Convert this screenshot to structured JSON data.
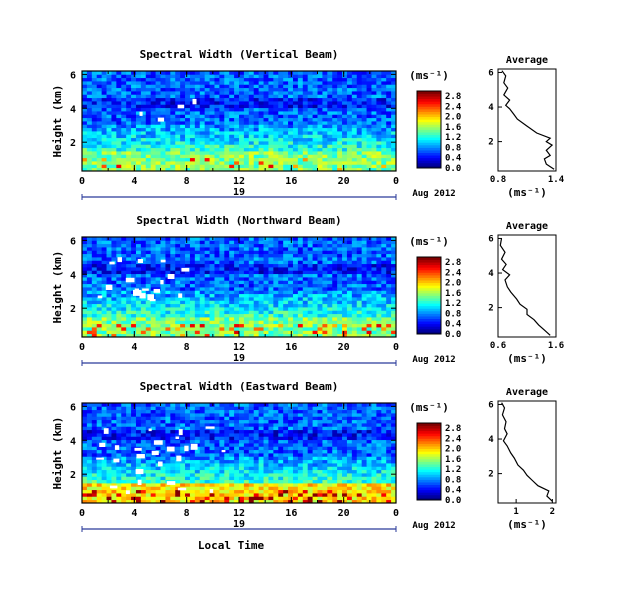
{
  "chart_data": [
    {
      "type": "heatmap",
      "title": "Spectral Width (Vertical Beam)",
      "ylabel": "Height (km)",
      "y_ticks": [
        "2",
        "4",
        "6"
      ],
      "ylim": [
        0.3,
        6.2
      ],
      "x_ticks": [
        "0",
        "4",
        "8",
        "12",
        "16",
        "20",
        "0"
      ],
      "xlim": [
        0,
        24
      ],
      "date_day": "19",
      "date_label": "Aug 2012",
      "colorbar": {
        "unit": "(ms⁻¹)",
        "ticks": [
          "0.0",
          "0.4",
          "0.8",
          "1.2",
          "1.6",
          "2.0",
          "2.4",
          "2.8"
        ],
        "range": [
          0,
          3.0
        ]
      },
      "average": {
        "title": "Average",
        "xlabel": "(ms⁻¹)",
        "x_ticks": [
          "0.8",
          "1.4"
        ],
        "xlim": [
          0.8,
          1.4
        ],
        "y_ticks": [
          "2",
          "4",
          "6"
        ],
        "profile": [
          [
            1.38,
            0.4
          ],
          [
            1.3,
            0.7
          ],
          [
            1.28,
            1.0
          ],
          [
            1.34,
            1.2
          ],
          [
            1.3,
            1.5
          ],
          [
            1.36,
            1.8
          ],
          [
            1.3,
            2.0
          ],
          [
            1.34,
            2.2
          ],
          [
            1.2,
            2.5
          ],
          [
            1.1,
            2.9
          ],
          [
            1.0,
            3.3
          ],
          [
            0.96,
            3.6
          ],
          [
            0.92,
            3.9
          ],
          [
            0.88,
            4.1
          ],
          [
            0.92,
            4.4
          ],
          [
            0.86,
            4.7
          ],
          [
            0.9,
            5.1
          ],
          [
            0.86,
            5.4
          ],
          [
            0.88,
            5.8
          ],
          [
            0.84,
            6.1
          ]
        ]
      }
    },
    {
      "type": "heatmap",
      "title": "Spectral Width (Northward Beam)",
      "ylabel": "Height (km)",
      "y_ticks": [
        "2",
        "4",
        "6"
      ],
      "ylim": [
        0.3,
        6.2
      ],
      "x_ticks": [
        "0",
        "4",
        "8",
        "12",
        "16",
        "20",
        "0"
      ],
      "xlim": [
        0,
        24
      ],
      "date_day": "19",
      "date_label": "Aug 2012",
      "colorbar": {
        "unit": "(ms⁻¹)",
        "ticks": [
          "0.0",
          "0.4",
          "0.8",
          "1.2",
          "1.6",
          "2.0",
          "2.4",
          "2.8"
        ],
        "range": [
          0,
          3.0
        ]
      },
      "average": {
        "title": "Average",
        "xlabel": "(ms⁻¹)",
        "x_ticks": [
          "0.6",
          "1.6"
        ],
        "xlim": [
          0.6,
          1.6
        ],
        "y_ticks": [
          "2",
          "4",
          "6"
        ],
        "profile": [
          [
            1.5,
            0.4
          ],
          [
            1.4,
            0.7
          ],
          [
            1.3,
            1.0
          ],
          [
            1.22,
            1.3
          ],
          [
            1.1,
            1.6
          ],
          [
            1.1,
            1.9
          ],
          [
            0.98,
            2.2
          ],
          [
            0.92,
            2.5
          ],
          [
            0.82,
            2.9
          ],
          [
            0.76,
            3.2
          ],
          [
            0.72,
            3.6
          ],
          [
            0.8,
            3.9
          ],
          [
            0.68,
            4.2
          ],
          [
            0.74,
            4.5
          ],
          [
            0.66,
            4.8
          ],
          [
            0.72,
            5.2
          ],
          [
            0.64,
            5.6
          ],
          [
            0.66,
            6.0
          ]
        ]
      }
    },
    {
      "type": "heatmap",
      "title": "Spectral Width (Eastward Beam)",
      "ylabel": "Height (km)",
      "y_ticks": [
        "2",
        "4",
        "6"
      ],
      "ylim": [
        0.3,
        6.2
      ],
      "x_ticks": [
        "0",
        "4",
        "8",
        "12",
        "16",
        "20",
        "0"
      ],
      "xlim": [
        0,
        24
      ],
      "date_day": "19",
      "date_label": "Aug 2012",
      "xlabel": "Local Time",
      "colorbar": {
        "unit": "(ms⁻¹)",
        "ticks": [
          "0.0",
          "0.4",
          "0.8",
          "1.2",
          "1.6",
          "2.0",
          "2.4",
          "2.8"
        ],
        "range": [
          0,
          3.0
        ]
      },
      "average": {
        "title": "Average",
        "xlabel": "(ms⁻¹)",
        "x_ticks": [
          "1",
          "2"
        ],
        "xlim": [
          0.5,
          2.1
        ],
        "y_ticks": [
          "2",
          "4",
          "6"
        ],
        "profile": [
          [
            2.0,
            0.4
          ],
          [
            1.85,
            0.7
          ],
          [
            1.9,
            1.0
          ],
          [
            1.6,
            1.3
          ],
          [
            1.45,
            1.6
          ],
          [
            1.3,
            1.9
          ],
          [
            1.2,
            2.2
          ],
          [
            1.05,
            2.5
          ],
          [
            0.95,
            2.9
          ],
          [
            0.85,
            3.2
          ],
          [
            0.75,
            3.6
          ],
          [
            0.65,
            3.9
          ],
          [
            0.75,
            4.3
          ],
          [
            0.68,
            4.6
          ],
          [
            0.72,
            5.0
          ],
          [
            0.62,
            5.4
          ],
          [
            0.68,
            5.8
          ],
          [
            0.6,
            6.1
          ]
        ]
      }
    }
  ]
}
